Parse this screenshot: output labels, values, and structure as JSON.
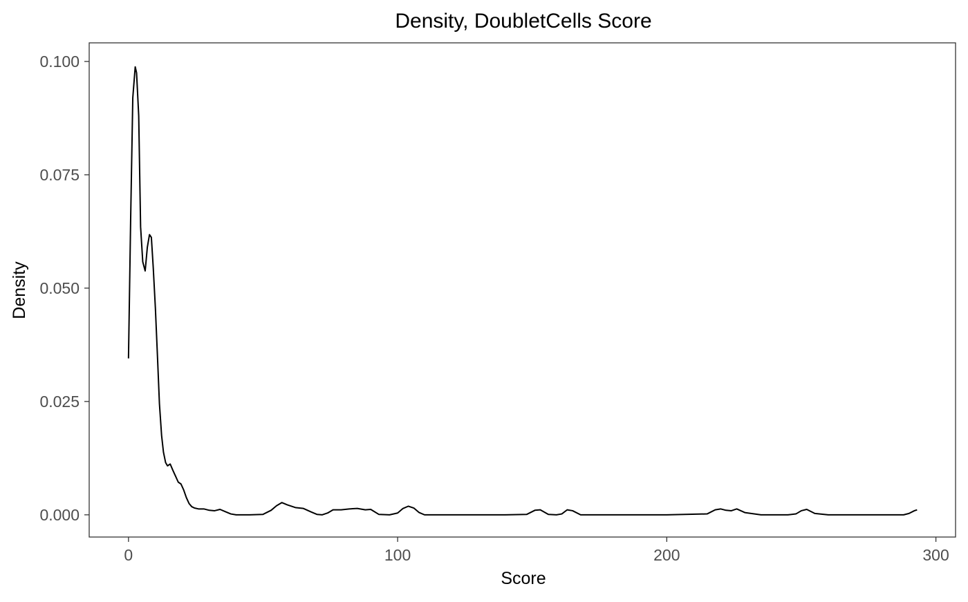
{
  "chart_data": {
    "type": "line",
    "title": "Density, DoubletCells Score",
    "xlabel": "Score",
    "ylabel": "Density",
    "xlim": [
      -14.6,
      307.3
    ],
    "ylim": [
      -0.0049,
      0.1041
    ],
    "x_ticks": [
      0,
      100,
      200,
      300
    ],
    "x_tick_labels": [
      "0",
      "100",
      "200",
      "300"
    ],
    "y_ticks": [
      0.0,
      0.025,
      0.05,
      0.075,
      0.1
    ],
    "y_tick_labels": [
      "0.000",
      "0.025",
      "0.050",
      "0.075",
      "0.100"
    ],
    "grid": false,
    "series": [
      {
        "color": "#000000",
        "x": [
          0,
          0.8,
          1.6,
          2.5,
          3.0,
          3.8,
          4.5,
          5.3,
          6.2,
          7.0,
          7.8,
          8.5,
          9.2,
          10.0,
          10.8,
          11.5,
          12.3,
          13.0,
          13.8,
          14.5,
          15.5,
          16.5,
          17.5,
          18.5,
          19.5,
          20.5,
          21.5,
          22.5,
          23.5,
          24.5,
          26.0,
          28.0,
          30.0,
          32.0,
          34.0,
          36.0,
          38.0,
          40.0,
          45.0,
          50.0,
          53.0,
          55.0,
          57.0,
          59.0,
          62.0,
          65.0,
          68.0,
          70.0,
          72.0,
          74.0,
          76.0,
          79.0,
          82.0,
          85.0,
          88.0,
          90.0,
          93.0,
          97.0,
          100.0,
          102.0,
          104.0,
          106.0,
          108.0,
          110.0,
          115.0,
          120.0,
          130.0,
          140.0,
          148.0,
          151.0,
          153.0,
          156.0,
          159.0,
          161.0,
          163.0,
          165.0,
          168.0,
          180.0,
          200.0,
          215.0,
          218.0,
          220.0,
          222.0,
          224.0,
          226.0,
          229.0,
          235.0,
          245.0,
          248.0,
          250.0,
          252.0,
          255.0,
          260.0,
          275.0,
          288.0,
          290.0,
          292.0,
          293.0
        ],
        "y": [
          0.0345,
          0.065,
          0.092,
          0.0988,
          0.0975,
          0.088,
          0.0635,
          0.0558,
          0.0538,
          0.059,
          0.0618,
          0.0612,
          0.0545,
          0.0455,
          0.0345,
          0.0245,
          0.0175,
          0.0138,
          0.0115,
          0.0108,
          0.0112,
          0.0098,
          0.0085,
          0.0072,
          0.0068,
          0.0055,
          0.0038,
          0.0025,
          0.0018,
          0.0015,
          0.0013,
          0.0013,
          0.001,
          0.0009,
          0.0012,
          0.0007,
          0.0002,
          0.0,
          0.0,
          0.0001,
          0.001,
          0.002,
          0.0027,
          0.0022,
          0.0016,
          0.0014,
          0.0006,
          0.0001,
          0.0,
          0.0004,
          0.0011,
          0.0011,
          0.0013,
          0.0014,
          0.0011,
          0.0012,
          0.0001,
          0.0,
          0.0004,
          0.0014,
          0.0019,
          0.0015,
          0.0005,
          0.0,
          0.0,
          0.0,
          0.0,
          0.0,
          0.0001,
          0.001,
          0.0011,
          0.0001,
          0.0,
          0.0002,
          0.0011,
          0.0009,
          0.0,
          0.0,
          0.0,
          0.0002,
          0.0011,
          0.0013,
          0.001,
          0.0009,
          0.0013,
          0.0005,
          0.0,
          0.0,
          0.0002,
          0.0009,
          0.0012,
          0.0003,
          0.0,
          0.0,
          0.0,
          0.0003,
          0.0009,
          0.0011
        ]
      }
    ]
  }
}
